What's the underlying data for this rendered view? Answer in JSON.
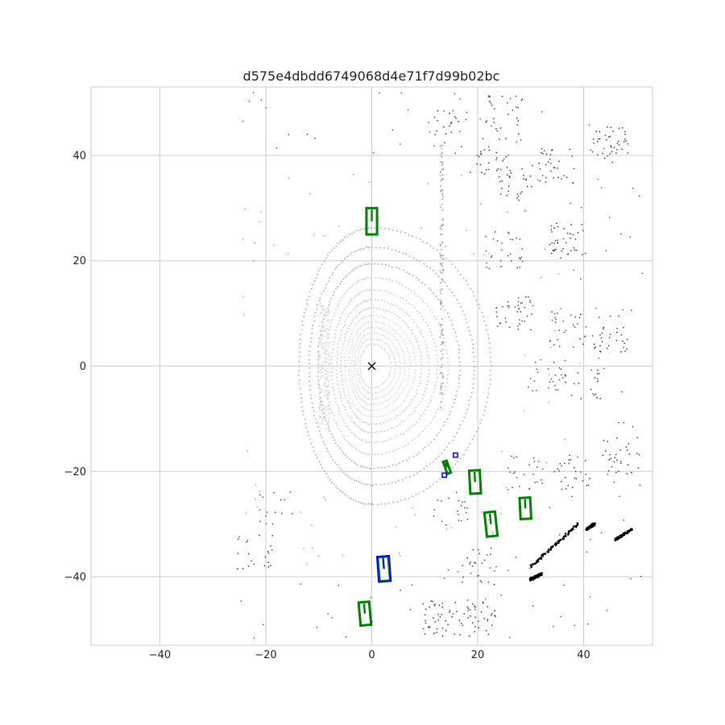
{
  "chart_data": {
    "type": "scatter",
    "title": "d575e4dbdd6749068d4e71f7d99b02bc",
    "xlabel": "",
    "ylabel": "",
    "xlim": [
      -53,
      53
    ],
    "ylim": [
      -53,
      53
    ],
    "xticks": [
      -40,
      -20,
      0,
      20,
      40
    ],
    "yticks": [
      -40,
      -20,
      0,
      20,
      40
    ],
    "xtick_labels": [
      "−40",
      "−20",
      "0",
      "20",
      "40"
    ],
    "ytick_labels": [
      "−40",
      "−20",
      "0",
      "20",
      "40"
    ],
    "grid": true,
    "legend": "none",
    "colors": {
      "grid": "#cccccc",
      "frame": "#cccccc",
      "ground_truth_box": "#008000",
      "prediction_box": "#0000ff",
      "ego_marker": "#000000",
      "lidar_near": "#e0e0e0",
      "lidar_mid": "#999999",
      "lidar_far": "#444444",
      "lidar_farthest": "#000000"
    },
    "ego": {
      "x": 0,
      "y": 0,
      "marker": "x"
    },
    "ground_truth_boxes": [
      {
        "cx": 0.0,
        "cy": 27.5,
        "w": 2.0,
        "l": 5.0,
        "yaw_deg": 0
      },
      {
        "cx": 19.5,
        "cy": -22.0,
        "w": 2.0,
        "l": 4.4,
        "yaw_deg": -3
      },
      {
        "cx": 22.5,
        "cy": -30.0,
        "w": 2.0,
        "l": 4.6,
        "yaw_deg": -6
      },
      {
        "cx": 29.0,
        "cy": -27.0,
        "w": 2.0,
        "l": 4.0,
        "yaw_deg": -3
      },
      {
        "cx": 2.3,
        "cy": -38.5,
        "w": 2.0,
        "l": 4.6,
        "yaw_deg": -5
      },
      {
        "cx": -1.3,
        "cy": -47.0,
        "w": 2.0,
        "l": 4.4,
        "yaw_deg": -5
      },
      {
        "cx": 14.2,
        "cy": -19.2,
        "w": 0.7,
        "l": 2.4,
        "yaw_deg": -20
      }
    ],
    "prediction_boxes": [
      {
        "cx": 2.3,
        "cy": -38.5,
        "w": 2.3,
        "l": 4.8,
        "yaw_deg": -4
      },
      {
        "cx": 13.7,
        "cy": -20.7,
        "w": 0.8,
        "l": 0.8,
        "yaw_deg": 0
      },
      {
        "cx": 15.8,
        "cy": -16.9,
        "w": 0.8,
        "l": 0.8,
        "yaw_deg": 0
      }
    ],
    "lidar_points": {
      "near_rings": {
        "center": [
          0,
          0
        ],
        "radii": [
          4,
          5,
          6,
          7,
          8,
          9.2,
          10.5,
          12,
          13.8,
          16,
          18.5,
          21.5,
          25
        ]
      },
      "clusters": [
        {
          "x": 45,
          "y": 42,
          "n": 40
        },
        {
          "x": 35,
          "y": 38,
          "n": 30
        },
        {
          "x": 27,
          "y": 35,
          "n": 30
        },
        {
          "x": 37,
          "y": 24,
          "n": 40
        },
        {
          "x": 25,
          "y": 22,
          "n": 30
        },
        {
          "x": 27,
          "y": 10,
          "n": 40
        },
        {
          "x": 37,
          "y": 7,
          "n": 30
        },
        {
          "x": 45,
          "y": 6,
          "n": 30
        },
        {
          "x": 33,
          "y": -2,
          "n": 25
        },
        {
          "x": 40,
          "y": -3,
          "n": 20
        },
        {
          "x": 47,
          "y": -17,
          "n": 30
        },
        {
          "x": 38,
          "y": -20,
          "n": 25
        },
        {
          "x": 29,
          "y": -20,
          "n": 25
        },
        {
          "x": 13,
          "y": -48,
          "n": 40
        },
        {
          "x": 20,
          "y": -48,
          "n": 35
        },
        {
          "x": 20,
          "y": -38,
          "n": 25
        },
        {
          "x": 15,
          "y": -27,
          "n": 20
        },
        {
          "x": -22,
          "y": -35,
          "n": 20
        },
        {
          "x": -18,
          "y": -27,
          "n": 15
        },
        {
          "x": 15,
          "y": 45,
          "n": 20
        },
        {
          "x": 25,
          "y": 48,
          "n": 25
        },
        {
          "x": 22,
          "y": 40,
          "n": 25
        }
      ],
      "dark_segments": [
        {
          "x1": 30,
          "y1": -38,
          "x2": 39,
          "y2": -30
        },
        {
          "x1": 30,
          "y1": -40.5,
          "x2": 32,
          "y2": -39.5
        },
        {
          "x1": 40.5,
          "y1": -31,
          "x2": 42,
          "y2": -30
        },
        {
          "x1": 46,
          "y1": -33,
          "x2": 49,
          "y2": -31
        }
      ]
    }
  }
}
